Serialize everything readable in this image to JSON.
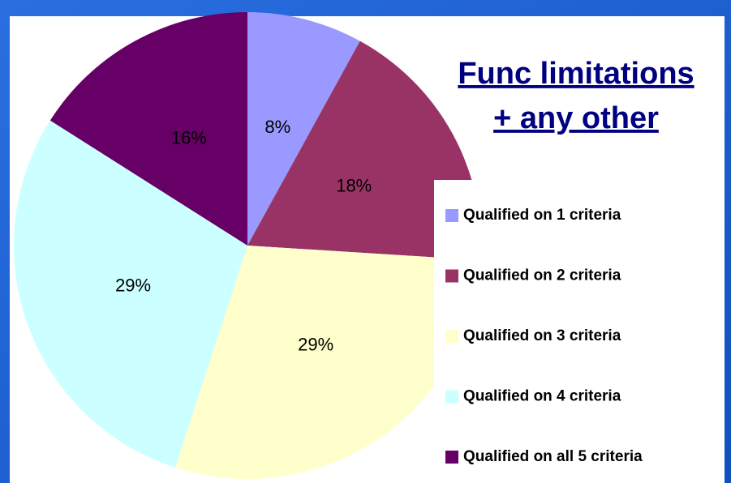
{
  "chart_data": {
    "type": "pie",
    "title": [
      "Func limitations",
      "+ any other"
    ],
    "categories": [
      "Qualified on 1 criteria",
      "Qualified on 2 criteria",
      "Qualified on 3 criteria",
      "Qualified on 4 criteria",
      "Qualified on all 5 criteria"
    ],
    "values": [
      8,
      18,
      29,
      29,
      16
    ],
    "value_labels": [
      "8%",
      "18%",
      "29%",
      "29%",
      "16%"
    ],
    "colors": [
      "#9999ff",
      "#993366",
      "#ffffcc",
      "#ccffff",
      "#660066"
    ],
    "legend": "right"
  }
}
